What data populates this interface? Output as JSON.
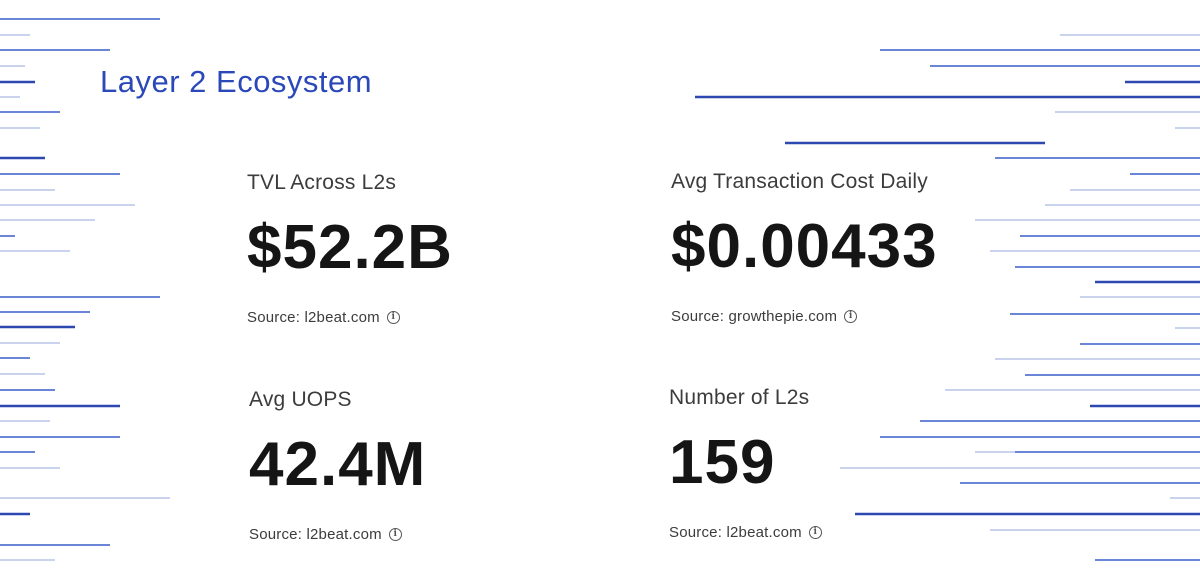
{
  "title": "Layer 2 Ecosystem",
  "colors": {
    "title": "#2a48b8",
    "value": "#151515",
    "text": "#3c3c3c",
    "line_dark": "#2d48b0",
    "line_mid": "#6b86d6",
    "line_light": "#c9d3ee"
  },
  "stats": [
    {
      "label": "TVL Across L2s",
      "value": "$52.2B",
      "source": "Source: l2beat.com",
      "info_icon": "info-circle-icon"
    },
    {
      "label": "Avg Transaction Cost Daily",
      "value": "$0.00433",
      "source": "Source: growthepie.com",
      "info_icon": "info-circle-icon"
    },
    {
      "label": "Avg UOPS",
      "value": "42.4M",
      "source": "Source: l2beat.com",
      "info_icon": "info-circle-icon"
    },
    {
      "label": "Number of L2s",
      "value": "159",
      "source": "Source: l2beat.com",
      "info_icon": "info-circle-icon"
    }
  ]
}
